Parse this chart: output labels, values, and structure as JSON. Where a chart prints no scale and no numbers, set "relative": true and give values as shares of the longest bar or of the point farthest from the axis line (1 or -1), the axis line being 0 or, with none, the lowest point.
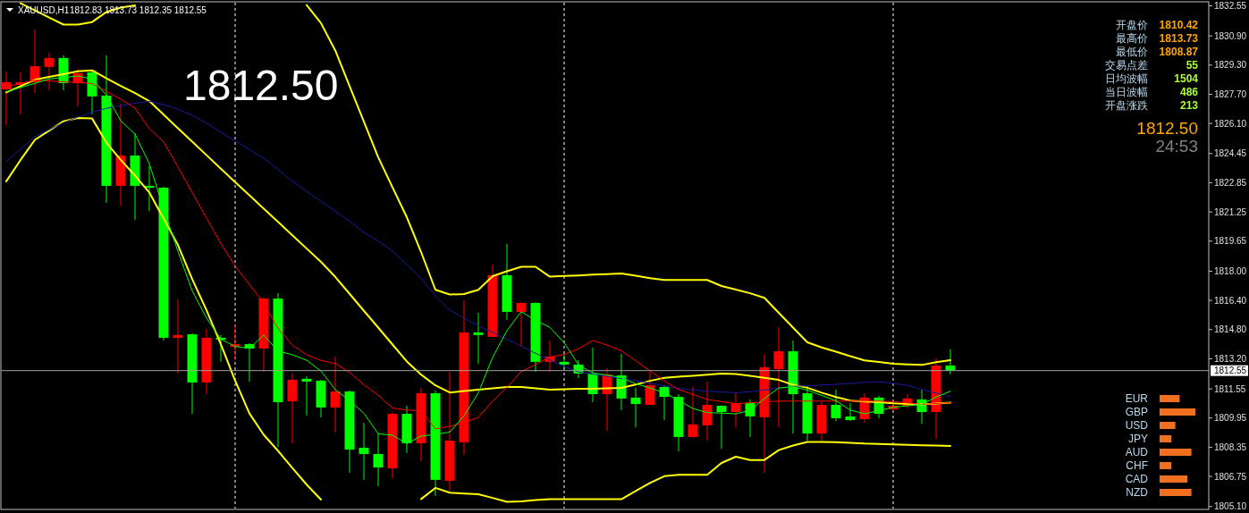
{
  "chart_data": [
    {
      "type": "candlestick",
      "title": "XAUUSD,H1",
      "subtitle": "1812.83 1813.73 1812.35 1812.55",
      "categories": [
        null,
        null,
        null,
        null,
        null,
        null,
        null,
        null,
        null,
        null,
        null,
        null,
        null,
        null,
        null,
        null,
        null,
        null,
        null,
        null,
        null,
        null,
        null,
        null,
        null,
        null,
        null,
        null,
        null,
        null,
        null,
        null,
        null,
        null,
        null,
        null,
        null,
        null,
        null,
        null,
        null,
        null,
        null,
        null,
        null,
        null,
        null,
        null,
        null,
        null,
        null,
        null,
        null,
        null,
        null,
        null,
        null,
        null,
        null,
        null,
        null,
        null,
        null,
        null,
        null,
        null,
        null
      ],
      "ohlc": [
        [
          1827.97,
          1828.95,
          1826.01,
          1828.36
        ],
        [
          1828.22,
          1828.9,
          1826.6,
          1828.36
        ],
        [
          1828.36,
          1831.25,
          1827.77,
          1829.24
        ],
        [
          1829.2,
          1829.98,
          1827.92,
          1829.69
        ],
        [
          1829.69,
          1829.83,
          1827.92,
          1828.31
        ],
        [
          1828.31,
          1829.1,
          1827.04,
          1828.85
        ],
        [
          1828.9,
          1829.05,
          1826.6,
          1827.58
        ],
        [
          1827.63,
          1829.83,
          1821.75,
          1822.68
        ],
        [
          1822.68,
          1827.19,
          1821.6,
          1824.34
        ],
        [
          1824.34,
          1825.57,
          1820.82,
          1822.68
        ],
        [
          1822.68,
          1823.8,
          1821.3,
          1822.58
        ],
        [
          1822.58,
          1822.63,
          1814.2,
          1814.35
        ],
        [
          1814.35,
          1816.45,
          1812.39,
          1814.5
        ],
        [
          1814.54,
          1814.6,
          1810.18,
          1811.9
        ],
        [
          1811.9,
          1814.84,
          1811.26,
          1814.35
        ],
        [
          1814.35,
          1814.5,
          1813.03,
          1814.25
        ],
        [
          1813.86,
          1815.08,
          1813.12,
          1814.0
        ],
        [
          1814.0,
          1814.05,
          1811.95,
          1813.76
        ],
        [
          1813.76,
          1816.55,
          1812.49,
          1816.5
        ],
        [
          1816.5,
          1816.8,
          1808.37,
          1810.82
        ],
        [
          1810.87,
          1812.39,
          1808.57,
          1812.05
        ],
        [
          1812.1,
          1812.24,
          1810.08,
          1811.95
        ],
        [
          1812.0,
          1812.05,
          1809.99,
          1810.53
        ],
        [
          1810.53,
          1813.32,
          1809.15,
          1811.41
        ],
        [
          1811.41,
          1811.45,
          1806.95,
          1808.22
        ],
        [
          1808.32,
          1809.69,
          1806.56,
          1807.98
        ],
        [
          1807.98,
          1809.1,
          1806.21,
          1807.24
        ],
        [
          1807.19,
          1810.28,
          1806.66,
          1810.18
        ],
        [
          1810.18,
          1810.62,
          1808.03,
          1808.57
        ],
        [
          1808.57,
          1811.6,
          1807.59,
          1811.31
        ],
        [
          1811.31,
          1811.46,
          1805.68,
          1806.56
        ],
        [
          1806.51,
          1812.49,
          1805.97,
          1808.71
        ],
        [
          1808.62,
          1816.41,
          1807.93,
          1814.64
        ],
        [
          1814.64,
          1815.72,
          1812.93,
          1814.5
        ],
        [
          1814.4,
          1818.37,
          1814.4,
          1817.78
        ],
        [
          1817.78,
          1819.49,
          1815.33,
          1815.77
        ],
        [
          1815.77,
          1816.31,
          1813.86,
          1816.26
        ],
        [
          1816.26,
          1816.3,
          1812.49,
          1813.03
        ],
        [
          1813.03,
          1814.2,
          1812.49,
          1813.32
        ],
        [
          1813.03,
          1813.47,
          1812.68,
          1812.88
        ],
        [
          1812.88,
          1813.12,
          1812.14,
          1812.39
        ],
        [
          1812.39,
          1813.81,
          1810.82,
          1811.26
        ],
        [
          1811.26,
          1812.68,
          1809.25,
          1812.34
        ],
        [
          1812.29,
          1813.47,
          1810.38,
          1811.02
        ],
        [
          1811.07,
          1811.6,
          1809.45,
          1810.72
        ],
        [
          1810.67,
          1812.49,
          1810.67,
          1811.75
        ],
        [
          1811.65,
          1811.75,
          1809.84,
          1811.11
        ],
        [
          1811.11,
          1811.26,
          1808.12,
          1808.91
        ],
        [
          1808.91,
          1811.65,
          1808.91,
          1809.6
        ],
        [
          1809.55,
          1811.95,
          1808.71,
          1810.67
        ],
        [
          1810.62,
          1810.65,
          1808.27,
          1810.28
        ],
        [
          1810.28,
          1811.31,
          1809.45,
          1810.77
        ],
        [
          1810.77,
          1810.97,
          1808.91,
          1810.04
        ],
        [
          1809.99,
          1813.42,
          1806.95,
          1812.73
        ],
        [
          1812.63,
          1814.94,
          1809.45,
          1813.61
        ],
        [
          1813.61,
          1814.2,
          1809.1,
          1811.26
        ],
        [
          1811.31,
          1811.7,
          1808.71,
          1809.1
        ],
        [
          1809.1,
          1810.82,
          1808.71,
          1810.67
        ],
        [
          1810.67,
          1811.51,
          1809.79,
          1809.94
        ],
        [
          1810.04,
          1810.77,
          1809.79,
          1809.84
        ],
        [
          1809.89,
          1811.31,
          1809.69,
          1811.07
        ],
        [
          1811.07,
          1811.16,
          1809.94,
          1810.18
        ],
        [
          1810.43,
          1810.87,
          1810.33,
          1810.62
        ],
        [
          1810.62,
          1811.26,
          1810.48,
          1811.02
        ],
        [
          1810.97,
          1811.51,
          1809.64,
          1810.28
        ],
        [
          1810.28,
          1813.22,
          1808.81,
          1812.83
        ],
        [
          1812.83,
          1813.73,
          1812.35,
          1812.55
        ]
      ],
      "series": [
        {
          "type": "line",
          "color": "#ffff00",
          "values": [
            null,
            1832.69,
            1832.3,
            1831.91,
            1831.52,
            1831.52,
            1831.66,
            1832.21,
            1832.45,
            1832.57,
            null,
            null,
            null,
            null,
            null,
            null,
            null,
            null,
            null,
            null,
            null,
            1832.59,
            1831.6,
            1830.1,
            1828.15,
            1826.2,
            1824.25,
            1822.6,
            1820.96,
            1819.05,
            1816.98,
            1816.72,
            1816.75,
            1816.98,
            1817.73,
            1818.0,
            1818.24,
            1818.24,
            1817.7,
            1817.74,
            1817.77,
            1817.81,
            1817.84,
            1817.88,
            1817.75,
            1817.62,
            1817.52,
            1817.52,
            1817.52,
            1817.52,
            1817.19,
            1816.99,
            1816.79,
            1816.54,
            1815.72,
            1814.91,
            1814.1,
            1813.82,
            1813.59,
            1813.34,
            1813.11,
            1813.02,
            1812.93,
            1812.89,
            1812.86,
            1813.01,
            1813.12
          ]
        },
        {
          "type": "line",
          "color": "#ffff00",
          "values": [
            1827.8,
            1828.15,
            1828.49,
            1828.65,
            1828.8,
            1828.96,
            1829.01,
            1828.57,
            1828.16,
            1827.77,
            1827.33,
            1826.58,
            1825.84,
            1825.1,
            1824.36,
            1823.62,
            1822.89,
            1822.16,
            1821.43,
            1820.7,
            1819.97,
            1819.24,
            1818.51,
            1817.69,
            1816.76,
            1815.83,
            1814.91,
            1813.98,
            1813.05,
            1812.33,
            1811.74,
            1811.35,
            1811.43,
            1811.51,
            1811.58,
            1811.65,
            1811.65,
            1811.58,
            1811.51,
            1811.53,
            1811.55,
            1811.56,
            1811.58,
            1811.6,
            1811.79,
            1811.99,
            1812.15,
            1812.22,
            1812.27,
            1812.33,
            1812.39,
            1812.36,
            1812.27,
            1812.16,
            1812.04,
            1811.77,
            1811.61,
            1811.34,
            1811.1,
            1810.91,
            1810.86,
            1810.82,
            1810.76,
            1810.72,
            1810.7,
            1810.75,
            1810.79
          ]
        },
        {
          "type": "line",
          "color": "#ffff00",
          "values": [
            1822.93,
            1824.1,
            1825.2,
            1825.71,
            1826.22,
            1826.4,
            1826.37,
            1825.05,
            1824.1,
            1823.24,
            1822.32,
            1820.88,
            1819.44,
            1817.56,
            1815.86,
            1814.0,
            1812.0,
            1810.2,
            1809.03,
            1808.15,
            1807.21,
            1806.3,
            1805.48,
            null,
            null,
            null,
            null,
            null,
            null,
            1805.51,
            1806.12,
            1805.86,
            1805.81,
            1805.77,
            1805.57,
            1805.36,
            1805.38,
            1805.46,
            1805.5,
            1805.5,
            1805.5,
            1805.5,
            1805.5,
            1805.5,
            1805.95,
            1806.39,
            1806.76,
            1806.84,
            1806.84,
            1806.84,
            1807.49,
            1807.83,
            1807.65,
            1807.65,
            1808.19,
            1808.44,
            1808.64,
            1808.64,
            1808.63,
            1808.59,
            1808.55,
            1808.53,
            1808.51,
            1808.48,
            1808.46,
            1808.44,
            1808.42
          ]
        },
        {
          "type": "line",
          "color": "#1a1aa0",
          "values": [
            1824.0,
            1824.7,
            1825.37,
            1825.76,
            1826.15,
            1826.45,
            1826.72,
            1826.93,
            1827.07,
            1827.21,
            1827.32,
            1827.13,
            1826.88,
            1826.54,
            1826.12,
            1825.62,
            1825.14,
            1824.67,
            1824.19,
            1823.57,
            1822.93,
            1822.38,
            1821.83,
            1821.29,
            1820.74,
            1820.13,
            1819.65,
            1819.1,
            1818.37,
            1817.61,
            1816.66,
            1815.87,
            1815.44,
            1815.01,
            1814.64,
            1814.27,
            1813.89,
            1813.5,
            1813.13,
            1812.78,
            1812.48,
            1812.36,
            1812.24,
            1812.12,
            1812.0,
            1811.87,
            1811.71,
            1811.58,
            1811.5,
            1811.42,
            1811.38,
            1811.34,
            1811.39,
            1811.49,
            1811.59,
            1811.69,
            1811.72,
            1811.76,
            1811.8,
            1811.85,
            1811.91,
            1811.94,
            1811.85,
            1811.74,
            1811.51,
            1811.32,
            1811.13
          ]
        },
        {
          "type": "line",
          "color": "#ff0000",
          "values": [
            1828.1,
            1828.29,
            1828.47,
            1828.43,
            1828.38,
            1828.34,
            1828.29,
            1827.86,
            1827.43,
            1826.94,
            1825.82,
            1825.08,
            1823.72,
            1822.31,
            1820.91,
            1819.52,
            1818.28,
            1817.27,
            1816.23,
            1814.87,
            1813.94,
            1813.42,
            1813.11,
            1812.94,
            1812.45,
            1811.77,
            1811.2,
            1810.5,
            1810.39,
            1810.34,
            1809.36,
            1809.49,
            1809.7,
            1809.98,
            1810.88,
            1811.63,
            1812.5,
            1812.88,
            1813.3,
            1813.43,
            1813.75,
            1814.2,
            1813.95,
            1813.64,
            1813.09,
            1812.54,
            1811.98,
            1811.51,
            1811.24,
            1810.97,
            1810.85,
            1810.74,
            1810.79,
            1810.83,
            1810.88,
            1810.88,
            1810.88,
            1810.88,
            1810.88,
            1810.88,
            1810.88,
            1810.88,
            1810.85,
            1810.78,
            1810.7,
            1810.75,
            1810.79
          ]
        },
        {
          "type": "line",
          "color": "#00ff00",
          "values": [
            1827.84,
            1828.07,
            1828.3,
            1828.54,
            1828.63,
            1828.7,
            1828.54,
            1827.65,
            1826.25,
            1825.51,
            1823.9,
            1821.41,
            1819.09,
            1816.92,
            1815.43,
            1814.27,
            1813.88,
            1813.77,
            1814.5,
            1813.62,
            1813.42,
            1813.12,
            1812.53,
            1811.51,
            1810.91,
            1810.21,
            1809.09,
            1809.01,
            1808.55,
            1808.96,
            1809.05,
            1809.18,
            1810.07,
            1811.33,
            1813.28,
            1814.74,
            1815.78,
            1815.31,
            1814.92,
            1814.08,
            1812.88,
            1812.41,
            1812.31,
            1812.16,
            1811.83,
            1811.6,
            1811.33,
            1810.92,
            1810.47,
            1810.25,
            1810.22,
            1810.18,
            1810.37,
            1811.02,
            1811.6,
            1811.67,
            1811.48,
            1811.19,
            1810.9,
            1810.39,
            1810.18,
            1810.36,
            1810.54,
            1810.62,
            1810.7,
            1811.1,
            1811.42
          ]
        }
      ],
      "ylim": [
        1804.94,
        1832.77
      ],
      "yticks": [
        1832.55,
        {
          "value": 1830.9,
          "label": "1830.90"
        },
        {
          "value": 1829.3,
          "label": "1829.30"
        },
        {
          "value": 1827.7,
          "label": "1827.70"
        },
        {
          "value": 1826.1,
          "label": "1826.10"
        },
        1824.45,
        1822.85,
        1821.25,
        1819.65,
        {
          "value": 1818,
          "label": "1818.00"
        },
        {
          "value": 1816.4,
          "label": "1816.40"
        },
        {
          "value": 1814.8,
          "label": "1814.80"
        },
        {
          "value": 1813.2,
          "label": "1813.20"
        },
        1811.55,
        1809.95,
        1808.35,
        1806.75,
        {
          "value": 1805.1,
          "label": "1805.10"
        }
      ],
      "tick_labels": "y",
      "grid": "x",
      "ref_lines": [
        {
          "axis": "y",
          "value": 1812.55,
          "label": "1812.55",
          "color": "#a0a0a0"
        }
      ],
      "annotations": [
        "1812.50",
        "开盘价",
        "1810.42",
        "最高价",
        "1813.73",
        "最低价",
        "1808.87",
        "交易点差",
        "55",
        "日均波幅",
        "1504",
        "当日波幅",
        "486",
        "开盘涨跌",
        "213",
        "1812.50",
        "24:53"
      ]
    },
    {
      "type": "bar",
      "orientation": "horizontal",
      "relative": true,
      "categories": [
        "EUR",
        "GBP",
        "USD",
        "JPY",
        "AUD",
        "CHF",
        "CAD",
        "NZD"
      ],
      "values": [
        0.56,
        1,
        0.44,
        0.33,
        0.89,
        0.33,
        0.78,
        0.89
      ],
      "color": "#f07020"
    }
  ]
}
